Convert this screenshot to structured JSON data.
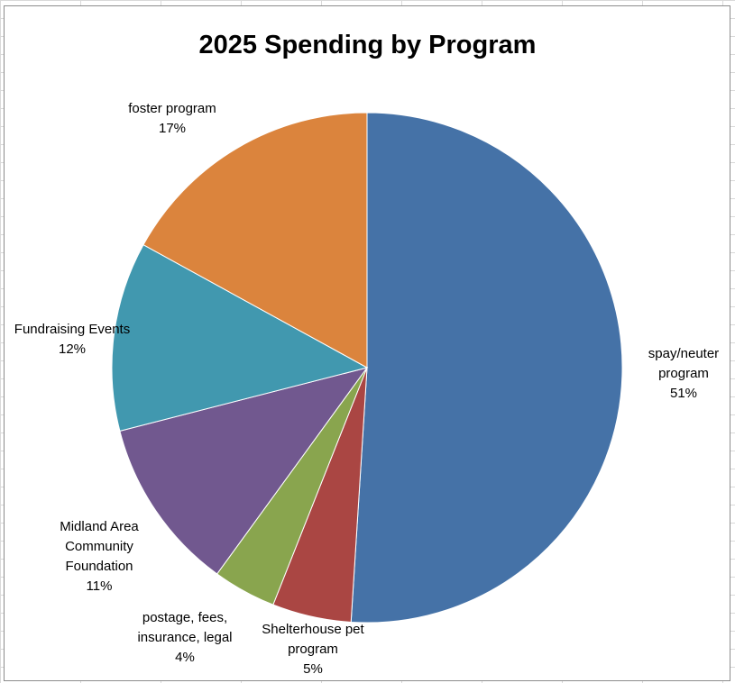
{
  "chart_data": {
    "type": "pie",
    "title": "2025 Spending by Program",
    "slices": [
      {
        "label": [
          "spay/neuter",
          "program"
        ],
        "percent_label": "51%",
        "value": 51,
        "color": "#4572a7"
      },
      {
        "label": [
          "Shelterhouse pet",
          "program"
        ],
        "percent_label": "5%",
        "value": 5,
        "color": "#aa4643"
      },
      {
        "label": [
          "postage, fees,",
          "insurance, legal"
        ],
        "percent_label": "4%",
        "value": 4,
        "color": "#89a54e"
      },
      {
        "label": [
          "Midland Area",
          "Community",
          "Foundation"
        ],
        "percent_label": "11%",
        "value": 11,
        "color": "#71588f"
      },
      {
        "label": [
          "Fundraising Events"
        ],
        "percent_label": "12%",
        "value": 12,
        "color": "#4198af"
      },
      {
        "label": [
          "foster program"
        ],
        "percent_label": "17%",
        "value": 17,
        "color": "#db843d"
      }
    ],
    "start_angle": "12 o'clock",
    "direction": "clockwise",
    "legend": "none"
  }
}
